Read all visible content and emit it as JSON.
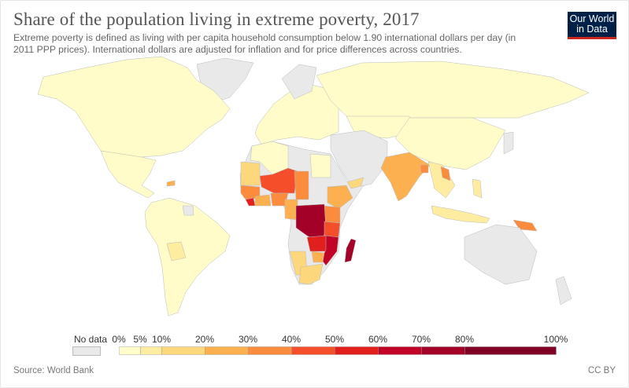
{
  "header": {
    "title": "Share of the population living in extreme poverty, 2017",
    "subtitle": "Extreme poverty is defined as living with per capita household consumption below 1.90 international dollars per day (in 2011 PPP prices). International dollars are adjusted for inflation and for price differences across countries.",
    "logo_line1": "Our World",
    "logo_line2": "in Data"
  },
  "footer": {
    "source": "Source: World Bank",
    "license": "CC BY"
  },
  "chart_data": {
    "type": "map",
    "title": "Share of the population living in extreme poverty, 2017",
    "legend": {
      "no_data_label": "No data",
      "no_data_color": "#e9e9e9",
      "breaks": [
        0,
        5,
        10,
        20,
        30,
        40,
        50,
        60,
        70,
        80,
        100
      ],
      "tick_labels": [
        "0%",
        "5%",
        "10%",
        "20%",
        "30%",
        "40%",
        "50%",
        "60%",
        "70%",
        "80%",
        "100%"
      ],
      "colors": [
        "#fffcc9",
        "#feeca0",
        "#fdd77b",
        "#fcb04f",
        "#fb8c3e",
        "#f54e2b",
        "#e11f1d",
        "#c10327",
        "#a30128",
        "#800026"
      ]
    },
    "regions": [
      {
        "id": "north-america",
        "bin": 0
      },
      {
        "id": "mexico-central-america",
        "bin": 0
      },
      {
        "id": "haiti",
        "bin": 3
      },
      {
        "id": "south-america",
        "bin": 0
      },
      {
        "id": "bolivia",
        "bin": 1
      },
      {
        "id": "europe",
        "bin": 0
      },
      {
        "id": "russia",
        "bin": 0
      },
      {
        "id": "central-asia",
        "bin": 0
      },
      {
        "id": "china",
        "bin": 0
      },
      {
        "id": "india",
        "bin": 3
      },
      {
        "id": "bangladesh",
        "bin": 4
      },
      {
        "id": "southeast-asia",
        "bin": 1
      },
      {
        "id": "laos",
        "bin": 4
      },
      {
        "id": "indonesia",
        "bin": 1
      },
      {
        "id": "philippines",
        "bin": 1
      },
      {
        "id": "papua-new-guinea",
        "bin": 4
      },
      {
        "id": "north-africa",
        "bin": 0
      },
      {
        "id": "egypt",
        "bin": 0
      },
      {
        "id": "mauritania",
        "bin": 2
      },
      {
        "id": "mali-niger",
        "bin": 5
      },
      {
        "id": "chad",
        "bin": 4
      },
      {
        "id": "senegal-guinea",
        "bin": 4
      },
      {
        "id": "sierra-leone-liberia",
        "bin": 6
      },
      {
        "id": "ghana-ivory-coast",
        "bin": 3
      },
      {
        "id": "nigeria",
        "bin": 4
      },
      {
        "id": "ethiopia",
        "bin": 3
      },
      {
        "id": "kenya-uganda",
        "bin": 4
      },
      {
        "id": "drc",
        "bin": 8
      },
      {
        "id": "tanzania",
        "bin": 5
      },
      {
        "id": "zambia-malawi",
        "bin": 6
      },
      {
        "id": "mozambique",
        "bin": 7
      },
      {
        "id": "madagascar",
        "bin": 8
      },
      {
        "id": "namibia",
        "bin": 2
      },
      {
        "id": "south-africa",
        "bin": 2
      },
      {
        "id": "zimbabwe",
        "bin": 3
      },
      {
        "id": "cameroon-gabon",
        "bin": 3
      },
      {
        "id": "yemen",
        "bin": 2
      }
    ]
  }
}
